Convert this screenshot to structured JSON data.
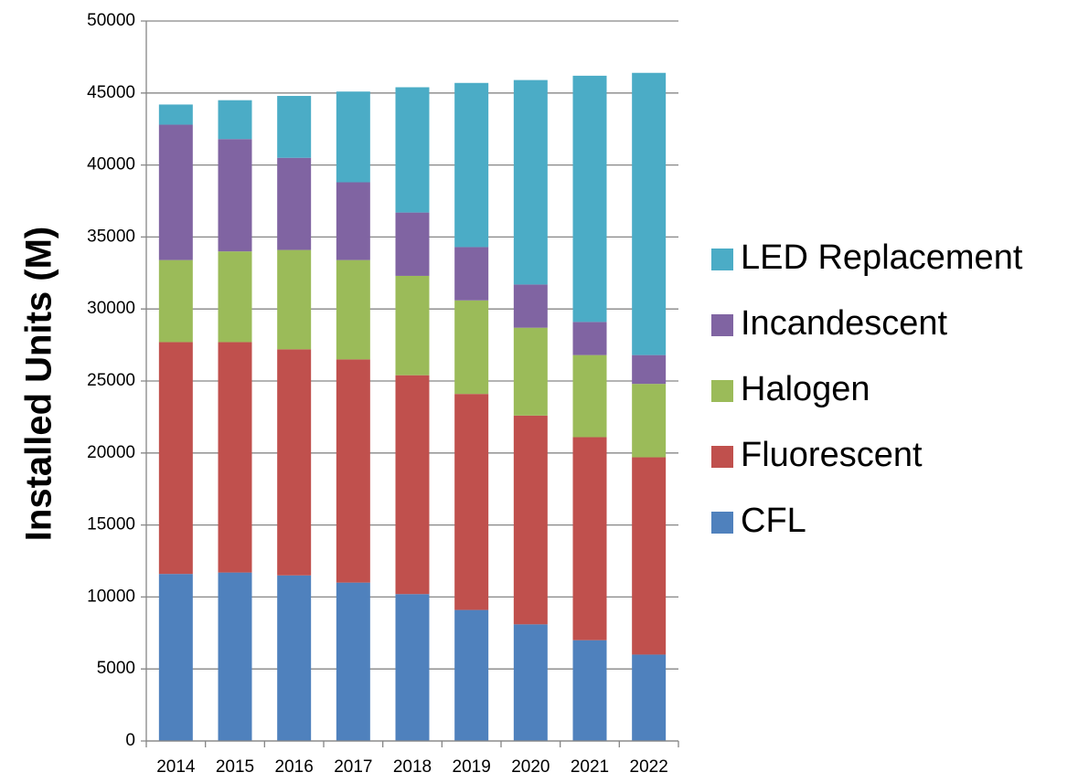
{
  "chart_data": {
    "type": "stacked_bar",
    "y_label": "Installed Units (M)",
    "categories": [
      "2014",
      "2015",
      "2016",
      "2017",
      "2018",
      "2019",
      "2020",
      "2021",
      "2022"
    ],
    "series": [
      {
        "name": "CFL",
        "color": "#4f81bd",
        "values": [
          11600,
          11700,
          11500,
          11000,
          10200,
          9100,
          8100,
          7000,
          6000
        ]
      },
      {
        "name": "Fluorescent",
        "color": "#c0504d",
        "values": [
          16100,
          16000,
          15700,
          15500,
          15200,
          15000,
          14500,
          14100,
          13700
        ]
      },
      {
        "name": "Halogen",
        "color": "#9bbb59",
        "values": [
          5700,
          6300,
          6900,
          6900,
          6900,
          6500,
          6100,
          5700,
          5100
        ]
      },
      {
        "name": "Incandescent",
        "color": "#8064a2",
        "values": [
          9400,
          7800,
          6400,
          5400,
          4400,
          3700,
          3000,
          2300,
          2000
        ]
      },
      {
        "name": "LED Replacement",
        "color": "#4bacc6",
        "values": [
          1400,
          2700,
          4300,
          6300,
          8700,
          11400,
          14200,
          17100,
          19600
        ]
      }
    ],
    "ylim": [
      0,
      50000
    ],
    "yticks": [
      0,
      5000,
      10000,
      15000,
      20000,
      25000,
      30000,
      35000,
      40000,
      45000,
      50000
    ],
    "grid": true,
    "legend": "right"
  }
}
